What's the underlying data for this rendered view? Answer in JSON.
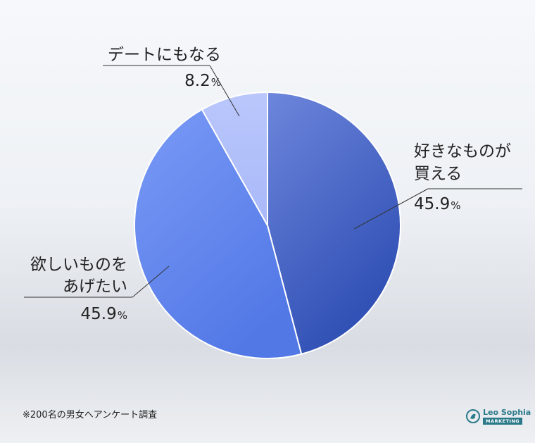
{
  "chart_data": {
    "type": "pie",
    "categories": [
      "好きなものが買える",
      "欲しいものをあげたい",
      "デートにもなる"
    ],
    "label_lines": [
      [
        "好きなものが",
        "買える"
      ],
      [
        "欲しいものを",
        "あげたい"
      ],
      [
        "デートにもなる"
      ]
    ],
    "values": [
      45.9,
      45.9,
      8.2
    ],
    "value_labels": [
      "45.9",
      "45.9",
      "8.2"
    ],
    "unit": "%",
    "colors": [
      "#4a68cf",
      "#6a8cf0",
      "#b4c2fb"
    ],
    "start": "12 o'clock",
    "direction": "clockwise"
  },
  "footnote": "※200名の男女へアンケート調査",
  "brand": {
    "name": "Leo Sophia",
    "tagline": "MARKETING",
    "color": "#2b7a8a"
  }
}
